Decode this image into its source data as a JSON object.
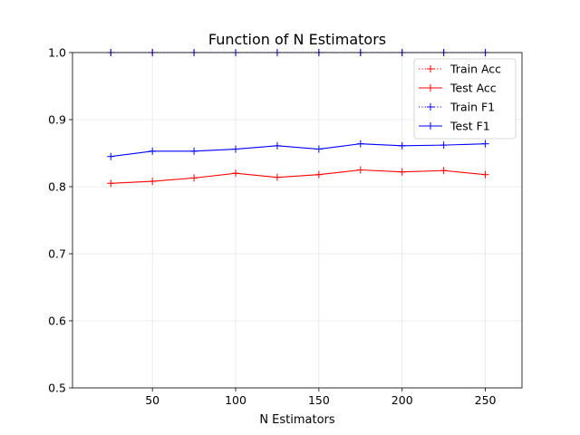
{
  "chart_data": {
    "type": "line",
    "title": "Function of N Estimators",
    "xlabel": "N Estimators",
    "ylabel": "",
    "xlim": [
      2,
      272
    ],
    "ylim": [
      0.5,
      1.0
    ],
    "xticks": [
      50,
      100,
      150,
      200,
      250
    ],
    "yticks": [
      0.5,
      0.6,
      0.7,
      0.8,
      0.9,
      1.0
    ],
    "grid": true,
    "legend_position": "top-right",
    "x": [
      25,
      50,
      75,
      100,
      125,
      150,
      175,
      200,
      225,
      250
    ],
    "series": [
      {
        "name": "Train Acc",
        "color": "#ff0000",
        "linestyle": "dotted",
        "marker": "plus",
        "values": [
          1.0,
          1.0,
          1.0,
          1.0,
          1.0,
          1.0,
          1.0,
          1.0,
          1.0,
          1.0
        ]
      },
      {
        "name": "Test Acc",
        "color": "#ff0000",
        "linestyle": "solid",
        "marker": "plus",
        "values": [
          0.805,
          0.808,
          0.813,
          0.82,
          0.814,
          0.818,
          0.825,
          0.822,
          0.824,
          0.818
        ]
      },
      {
        "name": "Train F1",
        "color": "#0000ff",
        "linestyle": "dotted",
        "marker": "plus",
        "values": [
          1.0,
          1.0,
          1.0,
          1.0,
          1.0,
          1.0,
          1.0,
          1.0,
          1.0,
          1.0
        ]
      },
      {
        "name": "Test F1",
        "color": "#0000ff",
        "linestyle": "solid",
        "marker": "plus",
        "values": [
          0.845,
          0.853,
          0.853,
          0.856,
          0.861,
          0.856,
          0.864,
          0.861,
          0.862,
          0.864
        ]
      }
    ]
  }
}
